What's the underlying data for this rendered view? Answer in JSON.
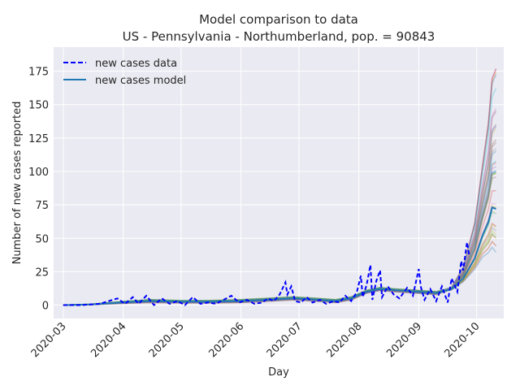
{
  "chart_data": {
    "type": "line",
    "title": "Model comparison to data",
    "subtitle": "US - Pennsylvania - Northumberland, pop. = 90843",
    "xlabel": "Day",
    "ylabel": "Number of new cases reported",
    "xlim": [
      "2020-02-25",
      "2020-10-15"
    ],
    "ylim": [
      -10,
      193
    ],
    "x_ticks": [
      "2020-03",
      "2020-04",
      "2020-05",
      "2020-06",
      "2020-07",
      "2020-08",
      "2020-09",
      "2020-10"
    ],
    "y_ticks": [
      0,
      25,
      50,
      75,
      100,
      125,
      150,
      175
    ],
    "grid": true,
    "legend_position": "top-left",
    "series": [
      {
        "name": "new cases data",
        "style": "dashed",
        "color": "#0000ff",
        "points": [
          [
            "2020-03-01",
            0
          ],
          [
            "2020-03-10",
            0
          ],
          [
            "2020-03-20",
            1
          ],
          [
            "2020-03-29",
            5
          ],
          [
            "2020-04-02",
            1
          ],
          [
            "2020-04-06",
            6
          ],
          [
            "2020-04-09",
            1
          ],
          [
            "2020-04-13",
            7
          ],
          [
            "2020-04-17",
            0
          ],
          [
            "2020-04-21",
            5
          ],
          [
            "2020-04-25",
            1
          ],
          [
            "2020-04-29",
            3
          ],
          [
            "2020-05-03",
            0
          ],
          [
            "2020-05-07",
            6
          ],
          [
            "2020-05-11",
            1
          ],
          [
            "2020-05-15",
            2
          ],
          [
            "2020-05-19",
            1
          ],
          [
            "2020-05-23",
            4
          ],
          [
            "2020-05-27",
            7
          ],
          [
            "2020-05-31",
            2
          ],
          [
            "2020-06-04",
            4
          ],
          [
            "2020-06-08",
            1
          ],
          [
            "2020-06-12",
            2
          ],
          [
            "2020-06-15",
            5
          ],
          [
            "2020-06-18",
            3
          ],
          [
            "2020-06-21",
            8
          ],
          [
            "2020-06-24",
            17
          ],
          [
            "2020-06-25",
            8
          ],
          [
            "2020-06-27",
            14
          ],
          [
            "2020-06-29",
            3
          ],
          [
            "2020-07-02",
            2
          ],
          [
            "2020-07-05",
            6
          ],
          [
            "2020-07-08",
            2
          ],
          [
            "2020-07-12",
            4
          ],
          [
            "2020-07-15",
            1
          ],
          [
            "2020-07-19",
            3
          ],
          [
            "2020-07-22",
            2
          ],
          [
            "2020-07-25",
            7
          ],
          [
            "2020-07-28",
            3
          ],
          [
            "2020-07-31",
            10
          ],
          [
            "2020-08-02",
            22
          ],
          [
            "2020-08-03",
            6
          ],
          [
            "2020-08-05",
            15
          ],
          [
            "2020-08-07",
            30
          ],
          [
            "2020-08-08",
            4
          ],
          [
            "2020-08-10",
            18
          ],
          [
            "2020-08-12",
            26
          ],
          [
            "2020-08-13",
            6
          ],
          [
            "2020-08-16",
            14
          ],
          [
            "2020-08-19",
            8
          ],
          [
            "2020-08-22",
            5
          ],
          [
            "2020-08-26",
            13
          ],
          [
            "2020-08-29",
            7
          ],
          [
            "2020-09-01",
            27
          ],
          [
            "2020-09-02",
            14
          ],
          [
            "2020-09-04",
            4
          ],
          [
            "2020-09-07",
            12
          ],
          [
            "2020-09-10",
            3
          ],
          [
            "2020-09-13",
            14
          ],
          [
            "2020-09-16",
            2
          ],
          [
            "2020-09-18",
            20
          ],
          [
            "2020-09-21",
            10
          ],
          [
            "2020-09-23",
            33
          ],
          [
            "2020-09-24",
            26
          ],
          [
            "2020-09-26",
            47
          ],
          [
            "2020-09-27",
            38
          ]
        ]
      },
      {
        "name": "new cases model",
        "style": "solid",
        "color": "#1f77b4",
        "points": [
          [
            "2020-03-01",
            0
          ],
          [
            "2020-03-15",
            0.5
          ],
          [
            "2020-04-01",
            2
          ],
          [
            "2020-04-15",
            3
          ],
          [
            "2020-05-01",
            2.5
          ],
          [
            "2020-05-15",
            2.5
          ],
          [
            "2020-06-01",
            3
          ],
          [
            "2020-06-15",
            4
          ],
          [
            "2020-06-28",
            5
          ],
          [
            "2020-07-10",
            4
          ],
          [
            "2020-07-20",
            3
          ],
          [
            "2020-07-28",
            5
          ],
          [
            "2020-08-05",
            10
          ],
          [
            "2020-08-12",
            12
          ],
          [
            "2020-08-20",
            11
          ],
          [
            "2020-08-31",
            10
          ],
          [
            "2020-09-10",
            9
          ],
          [
            "2020-09-18",
            12
          ],
          [
            "2020-09-24",
            20
          ],
          [
            "2020-09-30",
            35
          ],
          [
            "2020-10-04",
            52
          ],
          [
            "2020-10-07",
            62
          ],
          [
            "2020-10-09",
            73
          ],
          [
            "2020-10-11",
            72
          ]
        ]
      }
    ]
  }
}
